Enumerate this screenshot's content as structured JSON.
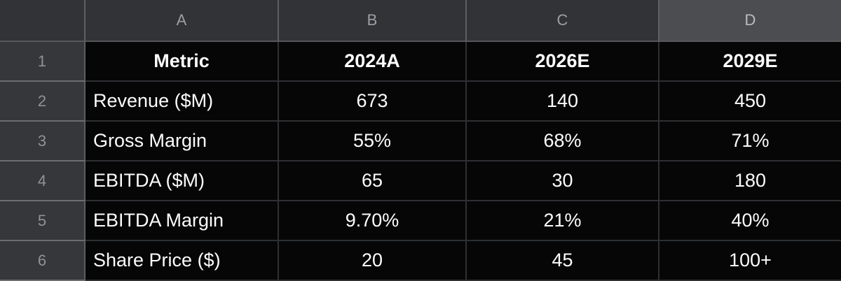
{
  "spreadsheet": {
    "column_headers": [
      "A",
      "B",
      "C",
      "D"
    ],
    "row_headers": [
      "1",
      "2",
      "3",
      "4",
      "5",
      "6"
    ],
    "selected_column": "D",
    "cells": [
      [
        "Metric",
        "2024A",
        "2026E",
        "2029E"
      ],
      [
        "Revenue ($M)",
        "673",
        "140",
        "450"
      ],
      [
        "Gross Margin",
        "55%",
        "68%",
        "71%"
      ],
      [
        "EBITDA ($M)",
        "65",
        "30",
        "180"
      ],
      [
        "EBITDA Margin",
        "9.70%",
        "21%",
        "40%"
      ],
      [
        "Share Price ($)",
        "20",
        "45",
        "100+"
      ]
    ]
  },
  "colors": {
    "colhead_bg": "#313337",
    "colhead_selected_bg": "#4b4d51",
    "rowhead_bg": "#35373b",
    "cell_bg": "#060607",
    "cell_grid": "#2e3033",
    "header_grid": "#5d5f63",
    "rowhead_grid": "#6b6e71",
    "header_text": "#9aa0a6",
    "rowhead_text": "#8e9297",
    "cell_text": "#fcfcfc"
  }
}
